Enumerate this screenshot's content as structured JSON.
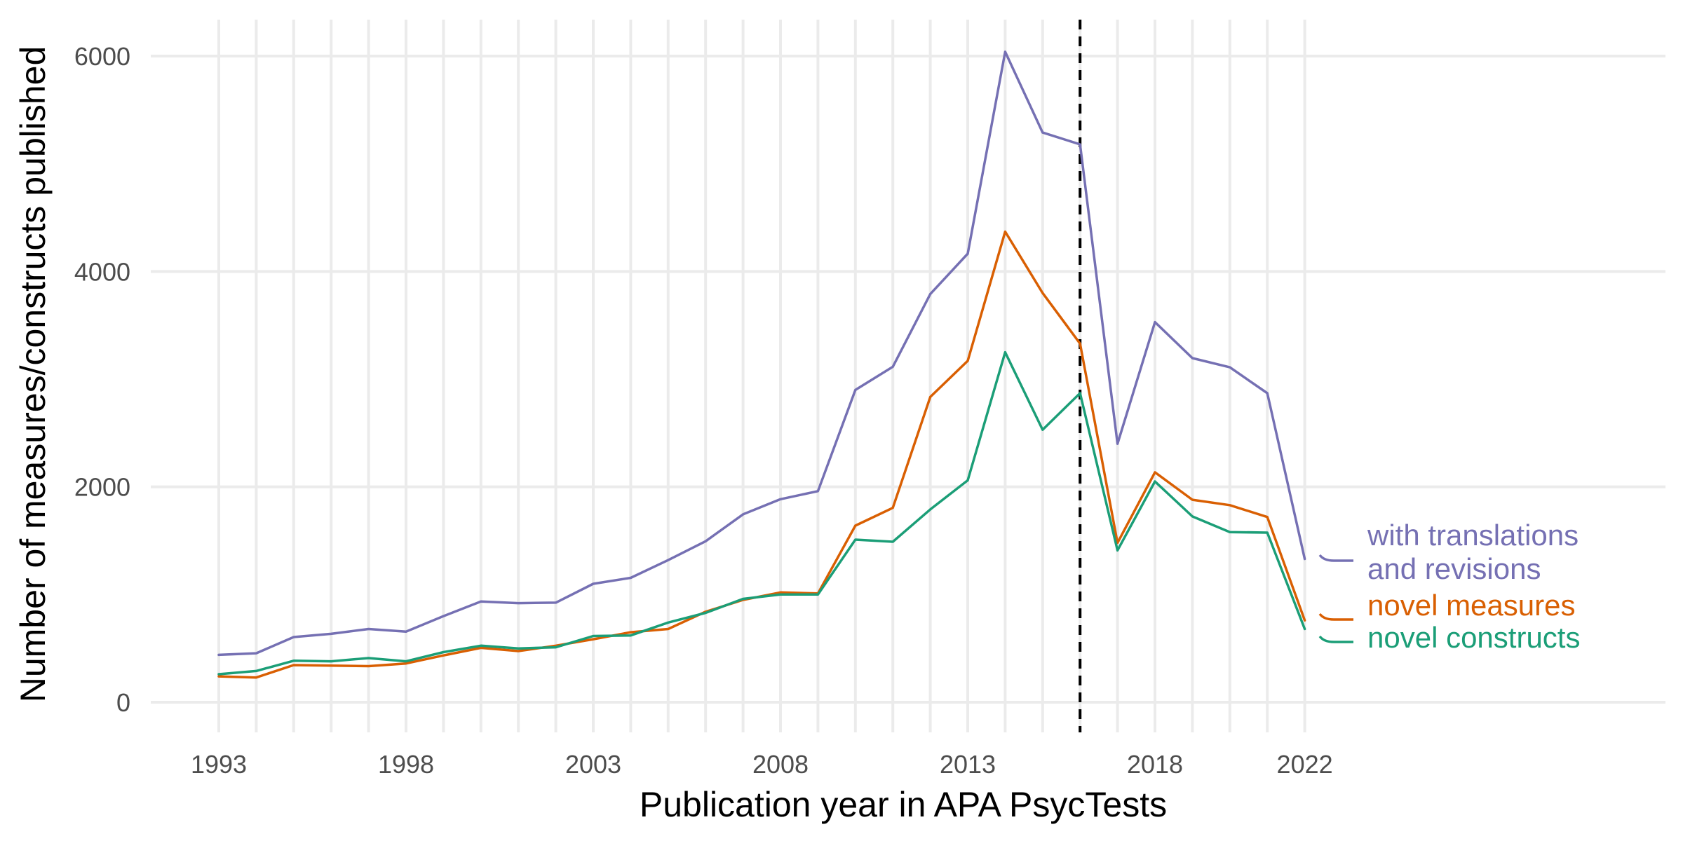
{
  "chart_data": {
    "type": "line",
    "title": "",
    "xlabel": "Publication year in APA PsycTests",
    "ylabel": "Number of measures/constructs published",
    "xlim": [
      1993,
      2022
    ],
    "ylim": [
      0,
      6000
    ],
    "x_ticks": [
      1993,
      1998,
      2003,
      2008,
      2013,
      2018,
      2022
    ],
    "y_ticks": [
      0,
      2000,
      4000,
      6000
    ],
    "grid": true,
    "reference_line_x": 2016,
    "legend_placement": "right, direct labels at line ends",
    "x": [
      1993,
      1994,
      1995,
      1996,
      1997,
      1998,
      1999,
      2000,
      2001,
      2002,
      2003,
      2004,
      2005,
      2006,
      2007,
      2008,
      2009,
      2010,
      2011,
      2012,
      2013,
      2014,
      2015,
      2016,
      2017,
      2018,
      2019,
      2020,
      2021,
      2022
    ],
    "series": [
      {
        "name": "with translations and revisions",
        "label_lines": [
          "with translations",
          "and revisions"
        ],
        "color": "#7570b3",
        "values": [
          440,
          455,
          605,
          635,
          680,
          655,
          800,
          935,
          920,
          925,
          1100,
          1155,
          1320,
          1495,
          1745,
          1885,
          1960,
          2900,
          3115,
          3790,
          4165,
          6040,
          5290,
          5180,
          2400,
          3530,
          3195,
          3110,
          2870,
          1330
        ]
      },
      {
        "name": "novel measures",
        "label_lines": [
          "novel measures"
        ],
        "color": "#d95f02",
        "values": [
          240,
          230,
          345,
          340,
          335,
          360,
          435,
          505,
          475,
          525,
          585,
          650,
          680,
          840,
          950,
          1020,
          1010,
          1640,
          1805,
          2835,
          3170,
          4370,
          3800,
          3330,
          1480,
          2135,
          1880,
          1830,
          1720,
          760
        ]
      },
      {
        "name": "novel constructs",
        "label_lines": [
          "novel constructs"
        ],
        "color": "#1b9e77",
        "values": [
          260,
          290,
          385,
          380,
          410,
          380,
          465,
          525,
          500,
          510,
          615,
          620,
          740,
          830,
          960,
          1000,
          1000,
          1510,
          1490,
          1790,
          2060,
          3250,
          2530,
          2870,
          1410,
          2050,
          1725,
          1580,
          1575,
          680
        ]
      }
    ]
  }
}
